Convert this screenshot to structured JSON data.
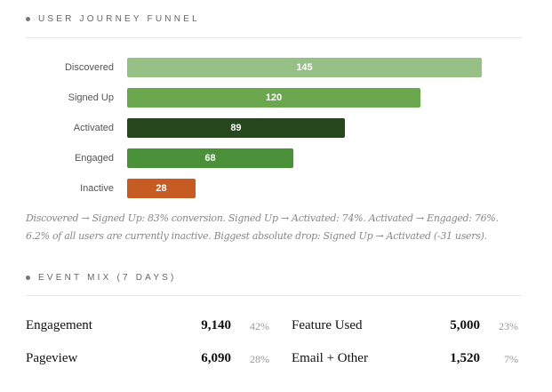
{
  "funnel": {
    "title": "USER JOURNEY FUNNEL",
    "caption_line1": "Discovered → Signed Up: 83% conversion. Signed Up → Activated: 74%. Activated → Engaged: 76%.",
    "caption_line2": "6.2% of all users are currently inactive. Biggest absolute drop: Signed Up → Activated (-31 users)."
  },
  "chart_data": {
    "type": "bar",
    "orientation": "horizontal",
    "title": "USER JOURNEY FUNNEL",
    "categories": [
      "Discovered",
      "Signed Up",
      "Activated",
      "Engaged",
      "Inactive"
    ],
    "values": [
      145,
      120,
      89,
      68,
      28
    ],
    "labels": [
      "145",
      "120",
      "89",
      "68",
      "28"
    ],
    "colors": [
      "#97c086",
      "#6aa74e",
      "#25471b",
      "#4a9139",
      "#c65b24"
    ],
    "xlim": [
      0,
      145
    ],
    "grid": false
  },
  "events": {
    "title": "EVENT MIX (7 DAYS)",
    "items": [
      {
        "name": "Engagement",
        "value": "9,140",
        "pct": "42%"
      },
      {
        "name": "Feature Used",
        "value": "5,000",
        "pct": "23%"
      },
      {
        "name": "Pageview",
        "value": "6,090",
        "pct": "28%"
      },
      {
        "name": "Email + Other",
        "value": "1,520",
        "pct": "7%"
      }
    ]
  }
}
